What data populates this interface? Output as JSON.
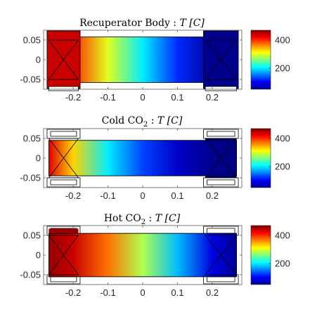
{
  "chart_data": [
    {
      "type": "heatmap",
      "title_plain": "Recuperator Body : ",
      "title_math": "T [C]",
      "x_ticks": [
        "-0.2",
        "-0.1",
        "0",
        "0.1",
        "0.2"
      ],
      "y_ticks": [
        "0.05",
        "0",
        "-0.05"
      ],
      "xlim": [
        -0.285,
        0.285
      ],
      "ylim": [
        -0.075,
        0.075
      ],
      "colorbar": {
        "ticks": [
          "400",
          "200"
        ],
        "range": [
          50,
          470
        ]
      },
      "temperature_profile": {
        "x": [
          -0.27,
          -0.2,
          -0.1,
          0,
          0.1,
          0.2,
          0.27
        ],
        "T": [
          440,
          400,
          300,
          200,
          120,
          60,
          55
        ]
      }
    },
    {
      "type": "heatmap",
      "title_plain": "Cold CO",
      "title_sub": "2",
      "title_after": " : ",
      "title_math": "T [C]",
      "x_ticks": [
        "-0.2",
        "-0.1",
        "0",
        "0.1",
        "0.2"
      ],
      "y_ticks": [
        "0.05",
        "0",
        "-0.05"
      ],
      "xlim": [
        -0.285,
        0.285
      ],
      "ylim": [
        -0.075,
        0.075
      ],
      "colorbar": {
        "ticks": [
          "400",
          "200"
        ],
        "range": [
          50,
          470
        ]
      },
      "temperature_profile": {
        "x": [
          -0.27,
          -0.2,
          -0.1,
          0,
          0.1,
          0.2,
          0.27
        ],
        "T": [
          430,
          330,
          200,
          130,
          80,
          55,
          50
        ]
      }
    },
    {
      "type": "heatmap",
      "title_plain": "Hot CO",
      "title_sub": "2",
      "title_after": " : ",
      "title_math": "T [C]",
      "x_ticks": [
        "-0.2",
        "-0.1",
        "0",
        "0.1",
        "0.2"
      ],
      "y_ticks": [
        "0.05",
        "0",
        "-0.05"
      ],
      "xlim": [
        -0.285,
        0.285
      ],
      "ylim": [
        -0.075,
        0.075
      ],
      "colorbar": {
        "ticks": [
          "400",
          "200"
        ],
        "range": [
          50,
          470
        ]
      },
      "temperature_profile": {
        "x": [
          -0.27,
          -0.2,
          -0.1,
          0,
          0.1,
          0.2,
          0.27
        ],
        "T": [
          460,
          440,
          370,
          280,
          180,
          90,
          60
        ]
      }
    }
  ]
}
